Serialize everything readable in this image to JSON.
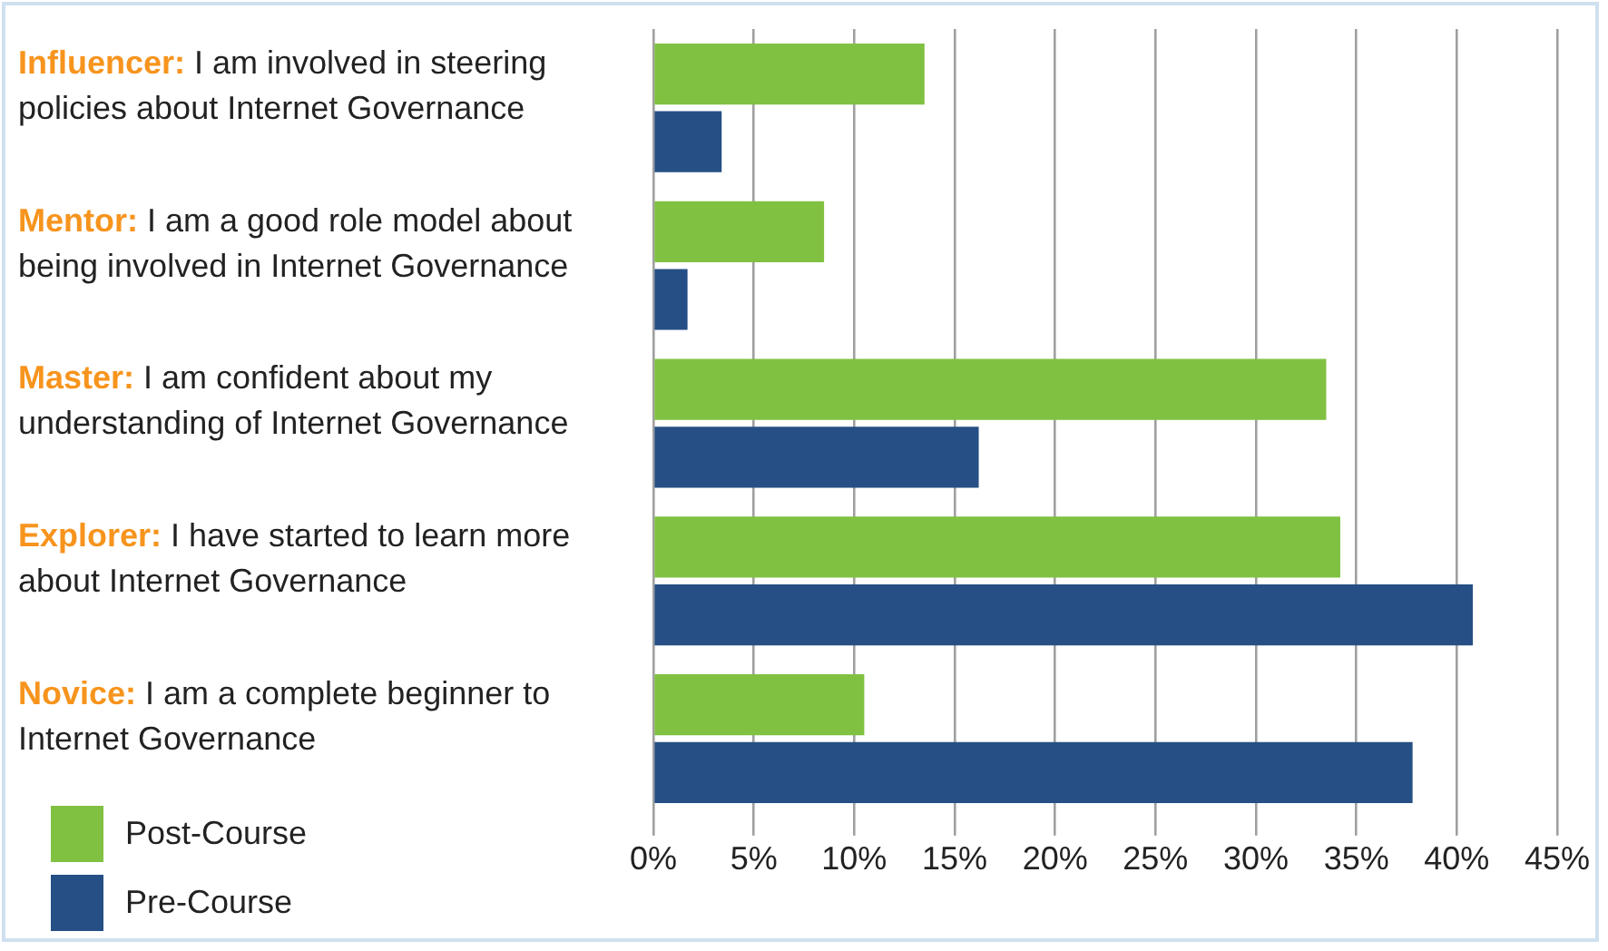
{
  "chart_data": {
    "type": "bar",
    "orientation": "horizontal",
    "categories": [
      "Influencer: I am involved in steering policies about Internet Governance",
      "Mentor: I am a good role model about being involved in Internet Governance",
      "Master: I am confident about my understanding of Internet Governance",
      "Explorer: I have started to learn more about Internet Governance",
      "Novice: I am a complete beginner to Internet Governance"
    ],
    "series": [
      {
        "name": "Post-Course",
        "color": "#80c141",
        "values": [
          13.5,
          8.5,
          33.5,
          34.2,
          10.5
        ]
      },
      {
        "name": "Pre-Course",
        "color": "#254f85",
        "values": [
          3.4,
          1.7,
          16.2,
          40.8,
          37.8
        ]
      }
    ],
    "xlim": [
      0,
      45
    ],
    "xticks": [
      {
        "value": 0,
        "label": "0%"
      },
      {
        "value": 5,
        "label": "5%"
      },
      {
        "value": 10,
        "label": "10%"
      },
      {
        "value": 15,
        "label": "15%"
      },
      {
        "value": 20,
        "label": "20%"
      },
      {
        "value": 25,
        "label": "25%"
      },
      {
        "value": 30,
        "label": "30%"
      },
      {
        "value": 35,
        "label": "35%"
      },
      {
        "value": 40,
        "label": "40%"
      },
      {
        "value": 45,
        "label": "45%"
      }
    ],
    "grid": "x",
    "legend": "bottom left"
  }
}
